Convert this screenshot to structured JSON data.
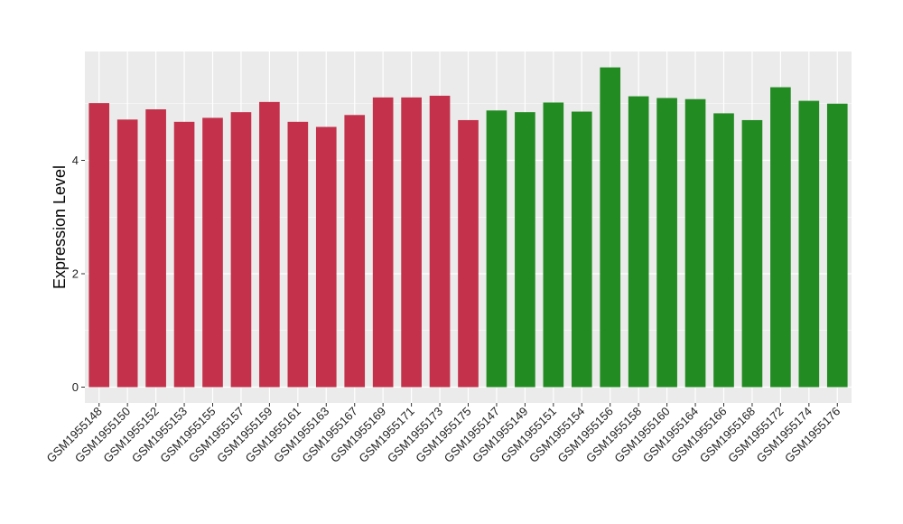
{
  "chart_data": {
    "type": "bar",
    "title": "",
    "xlabel": "",
    "ylabel": "Expression Level",
    "ylim": [
      0,
      5.95
    ],
    "yticks": [
      0,
      2,
      4
    ],
    "ytick_labels": [
      "0",
      "2",
      "4"
    ],
    "grid": true,
    "background": "#EBEBEB",
    "gridline_color": "#FFFFFF",
    "categories": [
      "GSM1955148",
      "GSM1955150",
      "GSM1955152",
      "GSM1955153",
      "GSM1955155",
      "GSM1955157",
      "GSM1955159",
      "GSM1955161",
      "GSM1955163",
      "GSM1955167",
      "GSM1955169",
      "GSM1955171",
      "GSM1955173",
      "GSM1955175",
      "GSM1955147",
      "GSM1955149",
      "GSM1955151",
      "GSM1955154",
      "GSM1955156",
      "GSM1955158",
      "GSM1955160",
      "GSM1955164",
      "GSM1955166",
      "GSM1955168",
      "GSM1955172",
      "GSM1955174",
      "GSM1955176"
    ],
    "values": [
      5.01,
      4.72,
      4.9,
      4.68,
      4.75,
      4.85,
      5.03,
      4.68,
      4.59,
      4.8,
      5.11,
      5.11,
      5.14,
      4.71,
      4.88,
      4.85,
      5.02,
      4.86,
      5.64,
      5.13,
      5.1,
      5.08,
      4.83,
      4.71,
      5.29,
      5.05,
      5.0
    ],
    "group_colors": [
      "#C3314A",
      "#228B22"
    ],
    "bar_groups": [
      0,
      0,
      0,
      0,
      0,
      0,
      0,
      0,
      0,
      0,
      0,
      0,
      0,
      0,
      1,
      1,
      1,
      1,
      1,
      1,
      1,
      1,
      1,
      1,
      1,
      1,
      1
    ]
  }
}
